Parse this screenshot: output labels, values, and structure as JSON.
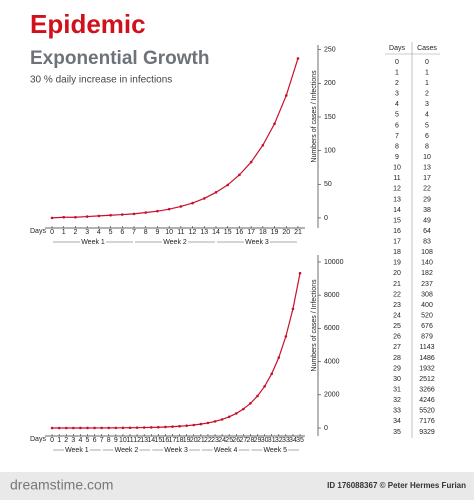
{
  "header": {
    "title": "Epidemic",
    "subtitle": "Exponential Growth",
    "note": "30 % daily increase in infections"
  },
  "chart_data": [
    {
      "type": "line",
      "color": "#c8102e",
      "x_label": "Days",
      "y_label": "Numbers of cases / Infections",
      "x": [
        0,
        1,
        2,
        3,
        4,
        5,
        6,
        7,
        8,
        9,
        10,
        11,
        12,
        13,
        14,
        15,
        16,
        17,
        18,
        19,
        20,
        21
      ],
      "values": [
        0,
        1,
        1,
        2,
        3,
        4,
        5,
        6,
        8,
        10,
        13,
        17,
        22,
        29,
        38,
        49,
        64,
        83,
        108,
        140,
        182,
        237
      ],
      "xlim": [
        -0.6,
        21.6
      ],
      "ylim": [
        -15,
        257
      ],
      "xticks": [
        0,
        1,
        2,
        3,
        4,
        5,
        6,
        7,
        8,
        9,
        10,
        11,
        12,
        13,
        14,
        15,
        16,
        17,
        18,
        19,
        20,
        21
      ],
      "yticks": [
        0,
        50,
        100,
        150,
        200,
        250
      ],
      "weeks": [
        {
          "label": "Week 1",
          "start": 0,
          "end": 7
        },
        {
          "label": "Week 2",
          "start": 7,
          "end": 14
        },
        {
          "label": "Week 3",
          "start": 14,
          "end": 21
        }
      ]
    },
    {
      "type": "line",
      "color": "#c8102e",
      "x_label": "Days",
      "y_label": "Numbers of cases / Infections",
      "x": [
        0,
        1,
        2,
        3,
        4,
        5,
        6,
        7,
        8,
        9,
        10,
        11,
        12,
        13,
        14,
        15,
        16,
        17,
        18,
        19,
        20,
        21,
        22,
        23,
        24,
        25,
        26,
        27,
        28,
        29,
        30,
        31,
        32,
        33,
        34,
        35
      ],
      "values": [
        0,
        1,
        1,
        2,
        3,
        4,
        5,
        6,
        8,
        10,
        13,
        17,
        22,
        29,
        38,
        49,
        64,
        83,
        108,
        140,
        182,
        237,
        308,
        400,
        520,
        676,
        879,
        1143,
        1486,
        1932,
        2512,
        3266,
        4246,
        5520,
        7176,
        9329
      ],
      "xlim": [
        -1,
        35.7
      ],
      "ylim": [
        -480,
        10420
      ],
      "xticks": [
        0,
        1,
        2,
        3,
        4,
        5,
        6,
        7,
        8,
        9,
        10,
        11,
        12,
        13,
        14,
        15,
        16,
        17,
        18,
        19,
        20,
        21,
        22,
        23,
        24,
        25,
        26,
        27,
        28,
        29,
        30,
        31,
        32,
        33,
        34,
        35
      ],
      "yticks": [
        0,
        2000,
        4000,
        6000,
        8000,
        10000
      ],
      "weeks": [
        {
          "label": "Week 1",
          "start": 0,
          "end": 7
        },
        {
          "label": "Week 2",
          "start": 7,
          "end": 14
        },
        {
          "label": "Week 3",
          "start": 14,
          "end": 21
        },
        {
          "label": "Week 4",
          "start": 21,
          "end": 28
        },
        {
          "label": "Week 5",
          "start": 28,
          "end": 35
        }
      ]
    }
  ],
  "table": {
    "header": [
      "Days",
      "Cases"
    ],
    "rows": [
      [
        0,
        0
      ],
      [
        1,
        1
      ],
      [
        2,
        1
      ],
      [
        3,
        2
      ],
      [
        4,
        3
      ],
      [
        5,
        4
      ],
      [
        6,
        5
      ],
      [
        7,
        6
      ],
      [
        8,
        8
      ],
      [
        9,
        10
      ],
      [
        10,
        13
      ],
      [
        11,
        17
      ],
      [
        12,
        22
      ],
      [
        13,
        29
      ],
      [
        14,
        38
      ],
      [
        15,
        49
      ],
      [
        16,
        64
      ],
      [
        17,
        83
      ],
      [
        18,
        108
      ],
      [
        19,
        140
      ],
      [
        20,
        182
      ],
      [
        21,
        237
      ],
      [
        22,
        308
      ],
      [
        23,
        400
      ],
      [
        24,
        520
      ],
      [
        25,
        676
      ],
      [
        26,
        879
      ],
      [
        27,
        1143
      ],
      [
        28,
        1486
      ],
      [
        29,
        1932
      ],
      [
        30,
        2512
      ],
      [
        31,
        3266
      ],
      [
        32,
        4246
      ],
      [
        33,
        5520
      ],
      [
        34,
        7176
      ],
      [
        35,
        9329
      ]
    ]
  },
  "footer": {
    "site": "dreamstime.com",
    "credit": "ID 176088367 © Peter Hermes Furian"
  }
}
